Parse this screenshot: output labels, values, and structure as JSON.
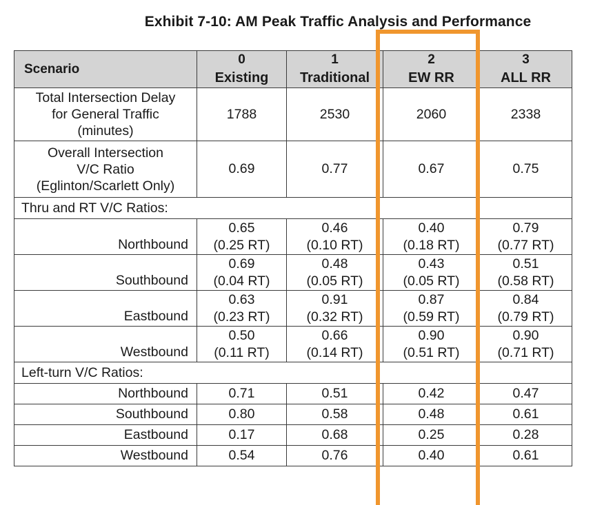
{
  "title": "Exhibit 7-10: AM Peak Traffic Analysis and Performance",
  "highlight_color": "#f0962e",
  "header_bg": "#d4d4d4",
  "header": {
    "scenario_label": "Scenario",
    "columns": [
      {
        "num": "0",
        "name": "Existing"
      },
      {
        "num": "1",
        "name": "Traditional"
      },
      {
        "num": "2",
        "name": "EW RR"
      },
      {
        "num": "3",
        "name": "ALL RR"
      }
    ]
  },
  "delay_row": {
    "label_lines": [
      "Total Intersection Delay",
      "for General Traffic",
      "(minutes)"
    ],
    "values": [
      "1788",
      "2530",
      "2060",
      "2338"
    ]
  },
  "vc_row": {
    "label_lines": [
      "Overall Intersection",
      "V/C Ratio",
      "(Eglinton/Scarlett Only)"
    ],
    "values": [
      "0.69",
      "0.77",
      "0.67",
      "0.75"
    ]
  },
  "thru_section": {
    "heading": "Thru and RT V/C Ratios:",
    "rows": [
      {
        "label": "Northbound",
        "cells": [
          [
            "0.65",
            "(0.25 RT)"
          ],
          [
            "0.46",
            "(0.10 RT)"
          ],
          [
            "0.40",
            "(0.18 RT)"
          ],
          [
            "0.79",
            "(0.77 RT)"
          ]
        ]
      },
      {
        "label": "Southbound",
        "cells": [
          [
            "0.69",
            "(0.04 RT)"
          ],
          [
            "0.48",
            "(0.05 RT)"
          ],
          [
            "0.43",
            "(0.05 RT)"
          ],
          [
            "0.51",
            "(0.58 RT)"
          ]
        ]
      },
      {
        "label": "Eastbound",
        "cells": [
          [
            "0.63",
            "(0.23 RT)"
          ],
          [
            "0.91",
            "(0.32 RT)"
          ],
          [
            "0.87",
            "(0.59 RT)"
          ],
          [
            "0.84",
            "(0.79 RT)"
          ]
        ]
      },
      {
        "label": "Westbound",
        "cells": [
          [
            "0.50",
            "(0.11 RT)"
          ],
          [
            "0.66",
            "(0.14 RT)"
          ],
          [
            "0.90",
            "(0.51 RT)"
          ],
          [
            "0.90",
            "(0.71 RT)"
          ]
        ]
      }
    ]
  },
  "left_section": {
    "heading": "Left-turn V/C Ratios:",
    "rows": [
      {
        "label": "Northbound",
        "values": [
          "0.71",
          "0.51",
          "0.42",
          "0.47"
        ]
      },
      {
        "label": "Southbound",
        "values": [
          "0.80",
          "0.58",
          "0.48",
          "0.61"
        ]
      },
      {
        "label": "Eastbound",
        "values": [
          "0.17",
          "0.68",
          "0.25",
          "0.28"
        ]
      },
      {
        "label": "Westbound",
        "values": [
          "0.54",
          "0.76",
          "0.40",
          "0.61"
        ]
      }
    ]
  }
}
